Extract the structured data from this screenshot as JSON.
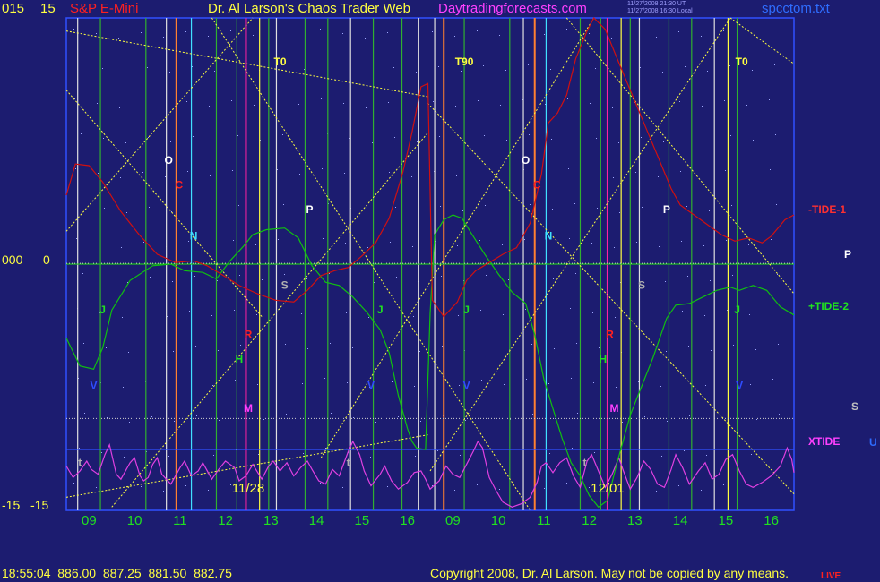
{
  "header": {
    "left_axis_top": "015",
    "left_axis_top2": "15",
    "title_market": "S&P E-Mini",
    "title_main": "Dr. Al Larson's Chaos Trader Web",
    "title_site": "Daytradingforecasts.com",
    "timestamp_ut": "11/27/2008 21:30 UT",
    "timestamp_local": "11/27/2008 16:30 Local",
    "filename": "spcctom.txt"
  },
  "axes": {
    "mid_left": "000",
    "mid_left2": "0",
    "bottom_left": "-15",
    "bottom_left2": "-15"
  },
  "legend": {
    "tide1": "-TIDE-1",
    "tide2": "+TIDE-2",
    "xtide": "XTIDE",
    "p": "P",
    "s": "S",
    "u": "U"
  },
  "footer": {
    "quote": "18:55:04  886.00  887.25  881.50  882.75",
    "copyright": "Copyright 2008, Dr. Al Larson. May not be copied by any means.",
    "corner": "LIVE"
  },
  "colors": {
    "background": "#1c1c70",
    "tide1": "#d01010",
    "tide2": "#10c010",
    "xtide": "#e040e0",
    "yellow": "#ffff40",
    "green_line": "#30b030",
    "cyan_line": "#40e0ff",
    "orange_line": "#ff8030",
    "magenta_line": "#ff20a0",
    "white_line": "#e0e0e0"
  },
  "chart_data": {
    "type": "line",
    "title": "S&P E-Mini",
    "y_range": [
      -15,
      15
    ],
    "x_ticks": [
      {
        "label": "09",
        "x": 0.5
      },
      {
        "label": "10",
        "x": 1.5
      },
      {
        "label": "11",
        "x": 2.5
      },
      {
        "label": "12",
        "x": 3.5
      },
      {
        "label": "13",
        "x": 4.5
      },
      {
        "label": "14",
        "x": 5.5
      },
      {
        "label": "15",
        "x": 6.5
      },
      {
        "label": "16",
        "x": 7.5
      },
      {
        "label": "09",
        "x": 8.5
      },
      {
        "label": "10",
        "x": 9.5
      },
      {
        "label": "11",
        "x": 10.5
      },
      {
        "label": "12",
        "x": 11.5
      },
      {
        "label": "13",
        "x": 12.5
      },
      {
        "label": "14",
        "x": 13.5
      },
      {
        "label": "15",
        "x": 14.5
      },
      {
        "label": "16",
        "x": 15.5
      }
    ],
    "date_labels": [
      {
        "label": "11/28",
        "x": 4.0,
        "y": -13.9
      },
      {
        "label": "12/01",
        "x": 11.9,
        "y": -13.9
      }
    ],
    "vlines": [
      {
        "x": 0.25,
        "color": "white"
      },
      {
        "x": 0.75,
        "color": "green"
      },
      {
        "x": 1.75,
        "color": "green"
      },
      {
        "x": 2.2,
        "color": "white"
      },
      {
        "x": 2.42,
        "color": "orange"
      },
      {
        "x": 2.75,
        "color": "cyan"
      },
      {
        "x": 3.3,
        "color": "green"
      },
      {
        "x": 3.75,
        "color": "green"
      },
      {
        "x": 3.95,
        "color": "magenta"
      },
      {
        "x": 4.25,
        "color": "yellow"
      },
      {
        "x": 4.45,
        "color": "green"
      },
      {
        "x": 4.62,
        "color": "white"
      },
      {
        "x": 5.25,
        "color": "green"
      },
      {
        "x": 5.75,
        "color": "green"
      },
      {
        "x": 6.25,
        "color": "white"
      },
      {
        "x": 6.75,
        "color": "green"
      },
      {
        "x": 7.38,
        "color": "green"
      },
      {
        "x": 7.75,
        "color": "white"
      },
      {
        "x": 8.1,
        "color": "white"
      },
      {
        "x": 8.3,
        "color": "orange"
      },
      {
        "x": 8.75,
        "color": "green"
      },
      {
        "x": 9.75,
        "color": "green"
      },
      {
        "x": 10.05,
        "color": "white"
      },
      {
        "x": 10.3,
        "color": "orange"
      },
      {
        "x": 10.55,
        "color": "cyan"
      },
      {
        "x": 11.3,
        "color": "green"
      },
      {
        "x": 11.75,
        "color": "green"
      },
      {
        "x": 11.9,
        "color": "magenta"
      },
      {
        "x": 12.2,
        "color": "yellow"
      },
      {
        "x": 12.4,
        "color": "green"
      },
      {
        "x": 12.6,
        "color": "white"
      },
      {
        "x": 13.25,
        "color": "green"
      },
      {
        "x": 13.75,
        "color": "green"
      },
      {
        "x": 14.25,
        "color": "white"
      },
      {
        "x": 14.55,
        "color": "yellow"
      },
      {
        "x": 14.75,
        "color": "green"
      }
    ],
    "tide1": [
      [
        0,
        4.2
      ],
      [
        0.2,
        6.1
      ],
      [
        0.5,
        6.0
      ],
      [
        0.8,
        5.0
      ],
      [
        1.2,
        3.2
      ],
      [
        1.6,
        1.8
      ],
      [
        2.0,
        0.6
      ],
      [
        2.4,
        0.1
      ],
      [
        2.8,
        0.2
      ],
      [
        3.1,
        -0.1
      ],
      [
        3.4,
        -0.6
      ],
      [
        3.8,
        -1.3
      ],
      [
        4.2,
        -1.8
      ],
      [
        4.6,
        -2.2
      ],
      [
        5.0,
        -2.3
      ],
      [
        5.3,
        -1.6
      ],
      [
        5.6,
        -0.7
      ],
      [
        5.9,
        -0.4
      ],
      [
        6.2,
        -0.2
      ],
      [
        6.5,
        0.5
      ],
      [
        6.8,
        1.3
      ],
      [
        7.1,
        2.8
      ],
      [
        7.4,
        5.6
      ],
      [
        7.6,
        8.0
      ],
      [
        7.8,
        10.8
      ],
      [
        7.95,
        11.0
      ],
      [
        8.05,
        -2.2
      ],
      [
        8.3,
        -3.2
      ],
      [
        8.6,
        -2.3
      ],
      [
        8.8,
        -1.0
      ],
      [
        9.0,
        -0.4
      ],
      [
        9.3,
        0.1
      ],
      [
        9.6,
        0.6
      ],
      [
        9.9,
        1.0
      ],
      [
        10.2,
        2.5
      ],
      [
        10.45,
        5.5
      ],
      [
        10.6,
        8.6
      ],
      [
        10.8,
        9.2
      ],
      [
        11.0,
        10.3
      ],
      [
        11.2,
        12.5
      ],
      [
        11.45,
        14.2
      ],
      [
        11.6,
        15.0
      ],
      [
        11.85,
        14.3
      ],
      [
        12.1,
        12.6
      ],
      [
        12.4,
        10.6
      ],
      [
        12.7,
        8.6
      ],
      [
        13.0,
        6.6
      ],
      [
        13.3,
        4.6
      ],
      [
        13.5,
        3.6
      ],
      [
        13.8,
        3.0
      ],
      [
        14.1,
        2.4
      ],
      [
        14.4,
        1.8
      ],
      [
        14.7,
        1.4
      ],
      [
        15.0,
        1.6
      ],
      [
        15.3,
        1.3
      ],
      [
        15.5,
        1.7
      ],
      [
        15.8,
        2.7
      ],
      [
        16.0,
        3.0
      ]
    ],
    "tide2": [
      [
        0,
        -4.5
      ],
      [
        0.3,
        -6.2
      ],
      [
        0.6,
        -6.4
      ],
      [
        0.8,
        -5.1
      ],
      [
        1.0,
        -2.8
      ],
      [
        1.4,
        -1.0
      ],
      [
        1.9,
        -0.1
      ],
      [
        2.3,
        0.0
      ],
      [
        2.6,
        -0.4
      ],
      [
        3.0,
        -0.5
      ],
      [
        3.3,
        -0.9
      ],
      [
        3.6,
        0.2
      ],
      [
        3.9,
        1.1
      ],
      [
        4.1,
        1.8
      ],
      [
        4.4,
        2.1
      ],
      [
        4.8,
        2.2
      ],
      [
        5.1,
        1.6
      ],
      [
        5.4,
        -0.1
      ],
      [
        5.7,
        -1.1
      ],
      [
        6.0,
        -1.3
      ],
      [
        6.3,
        -2.0
      ],
      [
        6.6,
        -2.9
      ],
      [
        6.9,
        -4.0
      ],
      [
        7.1,
        -5.4
      ],
      [
        7.3,
        -8.0
      ],
      [
        7.5,
        -10.0
      ],
      [
        7.6,
        -10.8
      ],
      [
        7.7,
        -11.2
      ],
      [
        7.9,
        -11.3
      ],
      [
        8.0,
        -3.0
      ],
      [
        8.1,
        1.8
      ],
      [
        8.3,
        2.7
      ],
      [
        8.5,
        3.0
      ],
      [
        8.7,
        2.8
      ],
      [
        8.9,
        1.9
      ],
      [
        9.2,
        0.6
      ],
      [
        9.5,
        -0.6
      ],
      [
        9.8,
        -1.7
      ],
      [
        10.1,
        -2.4
      ],
      [
        10.3,
        -4.3
      ],
      [
        10.5,
        -7.0
      ],
      [
        10.7,
        -8.8
      ],
      [
        10.9,
        -10.6
      ],
      [
        11.1,
        -12.1
      ],
      [
        11.3,
        -12.9
      ],
      [
        11.5,
        -14.1
      ],
      [
        11.7,
        -14.8
      ],
      [
        11.9,
        -14.4
      ],
      [
        12.1,
        -12.2
      ],
      [
        12.4,
        -9.2
      ],
      [
        12.6,
        -7.8
      ],
      [
        12.9,
        -5.7
      ],
      [
        13.2,
        -3.3
      ],
      [
        13.4,
        -2.5
      ],
      [
        13.7,
        -2.4
      ],
      [
        14.0,
        -2.0
      ],
      [
        14.3,
        -1.6
      ],
      [
        14.6,
        -1.4
      ],
      [
        14.8,
        -1.6
      ],
      [
        15.1,
        -1.3
      ],
      [
        15.4,
        -1.6
      ],
      [
        15.7,
        -2.6
      ],
      [
        16.0,
        -3.1
      ]
    ],
    "xtide": [
      [
        0,
        -12.3
      ],
      [
        0.15,
        -13.0
      ],
      [
        0.3,
        -12.6
      ],
      [
        0.45,
        -12.0
      ],
      [
        0.55,
        -12.5
      ],
      [
        0.7,
        -12.8
      ],
      [
        0.85,
        -11.6
      ],
      [
        0.95,
        -11.0
      ],
      [
        1.1,
        -12.8
      ],
      [
        1.2,
        -13.1
      ],
      [
        1.4,
        -12.1
      ],
      [
        1.5,
        -11.8
      ],
      [
        1.62,
        -12.9
      ],
      [
        1.7,
        -13.2
      ],
      [
        1.8,
        -13.0
      ],
      [
        1.9,
        -12.2
      ],
      [
        2.0,
        -11.8
      ],
      [
        2.1,
        -12.8
      ],
      [
        2.3,
        -13.4
      ],
      [
        2.5,
        -12.4
      ],
      [
        2.6,
        -12.0
      ],
      [
        2.75,
        -12.9
      ],
      [
        2.9,
        -12.6
      ],
      [
        3.0,
        -12.1
      ],
      [
        3.2,
        -13.1
      ],
      [
        3.35,
        -12.5
      ],
      [
        3.5,
        -12.0
      ],
      [
        3.7,
        -12.4
      ],
      [
        3.8,
        -13.2
      ],
      [
        3.95,
        -12.9
      ],
      [
        4.1,
        -12.2
      ],
      [
        4.3,
        -13.1
      ],
      [
        4.45,
        -12.3
      ],
      [
        4.55,
        -12.0
      ],
      [
        4.7,
        -12.6
      ],
      [
        4.85,
        -12.1
      ],
      [
        5.0,
        -12.9
      ],
      [
        5.15,
        -12.4
      ],
      [
        5.3,
        -12.0
      ],
      [
        5.4,
        -12.5
      ],
      [
        5.55,
        -13.2
      ],
      [
        5.7,
        -13.4
      ],
      [
        5.85,
        -12.5
      ],
      [
        6.0,
        -12.9
      ],
      [
        6.2,
        -11.4
      ],
      [
        6.3,
        -10.8
      ],
      [
        6.45,
        -11.6
      ],
      [
        6.55,
        -12.6
      ],
      [
        6.7,
        -13.5
      ],
      [
        6.9,
        -12.8
      ],
      [
        7.0,
        -12.3
      ],
      [
        7.15,
        -13.2
      ],
      [
        7.3,
        -13.7
      ],
      [
        7.5,
        -13.3
      ],
      [
        7.65,
        -12.7
      ],
      [
        7.8,
        -12.6
      ],
      [
        7.9,
        -13.1
      ],
      [
        8.0,
        -13.7
      ],
      [
        8.2,
        -13.2
      ],
      [
        8.35,
        -12.3
      ],
      [
        8.5,
        -12.8
      ],
      [
        8.65,
        -13.0
      ],
      [
        8.8,
        -12.2
      ],
      [
        8.95,
        -11.4
      ],
      [
        9.05,
        -10.8
      ],
      [
        9.15,
        -11.2
      ],
      [
        9.3,
        -13.0
      ],
      [
        9.45,
        -13.8
      ],
      [
        9.6,
        -14.5
      ],
      [
        9.8,
        -14.8
      ],
      [
        10.0,
        -14.6
      ],
      [
        10.2,
        -14.2
      ],
      [
        10.35,
        -13.3
      ],
      [
        10.45,
        -12.3
      ],
      [
        10.55,
        -12.1
      ],
      [
        10.7,
        -12.7
      ],
      [
        10.85,
        -12.1
      ],
      [
        11.0,
        -11.8
      ],
      [
        11.15,
        -12.9
      ],
      [
        11.3,
        -13.6
      ],
      [
        11.45,
        -12.0
      ],
      [
        11.55,
        -11.6
      ],
      [
        11.7,
        -12.6
      ],
      [
        11.85,
        -13.6
      ],
      [
        12.0,
        -12.8
      ],
      [
        12.15,
        -11.8
      ],
      [
        12.25,
        -12.6
      ],
      [
        12.4,
        -13.7
      ],
      [
        12.55,
        -13.0
      ],
      [
        12.7,
        -12.0
      ],
      [
        12.85,
        -12.5
      ],
      [
        13.0,
        -13.4
      ],
      [
        13.15,
        -13.6
      ],
      [
        13.3,
        -12.5
      ],
      [
        13.4,
        -11.6
      ],
      [
        13.55,
        -12.4
      ],
      [
        13.7,
        -13.4
      ],
      [
        13.9,
        -12.6
      ],
      [
        14.05,
        -12.1
      ],
      [
        14.2,
        -13.1
      ],
      [
        14.35,
        -12.8
      ],
      [
        14.5,
        -11.9
      ],
      [
        14.65,
        -11.6
      ],
      [
        14.8,
        -12.6
      ],
      [
        14.95,
        -13.4
      ],
      [
        15.1,
        -13.6
      ],
      [
        15.3,
        -13.3
      ],
      [
        15.5,
        -12.9
      ],
      [
        15.7,
        -12.3
      ],
      [
        15.85,
        -11.2
      ],
      [
        15.95,
        -11.9
      ],
      [
        16.0,
        -12.7
      ]
    ],
    "yellow_diag": [
      [
        [
          0,
          14.2
        ],
        [
          7.95,
          10.2
        ]
      ],
      [
        [
          0,
          -14.2
        ],
        [
          7.95,
          -10.4
        ]
      ],
      [
        [
          0,
          2.0
        ],
        [
          4.1,
          15.0
        ]
      ],
      [
        [
          0,
          10.6
        ],
        [
          4.3,
          -3.2
        ]
      ],
      [
        [
          1.0,
          -14.8
        ],
        [
          7.95,
          8.0
        ]
      ],
      [
        [
          3.2,
          15.0
        ],
        [
          10.2,
          -15.0
        ]
      ],
      [
        [
          8.0,
          -12.6
        ],
        [
          14.6,
          15.0
        ]
      ],
      [
        [
          11.0,
          15.0
        ],
        [
          16.0,
          -1.8
        ]
      ],
      [
        [
          7.95,
          9.8
        ],
        [
          16.0,
          -14.0
        ]
      ],
      [
        [
          14.6,
          15.0
        ],
        [
          16.0,
          12.2
        ]
      ],
      [
        [
          5.6,
          -11.8
        ],
        [
          11.6,
          15.0
        ]
      ]
    ],
    "hlines": [
      {
        "y": 0,
        "style": "solid-green"
      },
      {
        "y": 0.05,
        "style": "dotted-white"
      },
      {
        "y": -9.4,
        "style": "dotted-white"
      },
      {
        "y": -11.3,
        "style": "solid-blue"
      }
    ],
    "annotations": [
      {
        "text": "T0",
        "x": 4.7,
        "y": 12.1,
        "color": "yellow"
      },
      {
        "text": "T90",
        "x": 8.75,
        "y": 12.1,
        "color": "yellow"
      },
      {
        "text": "T0",
        "x": 14.85,
        "y": 12.1,
        "color": "yellow"
      },
      {
        "text": "O",
        "x": 2.25,
        "y": 6.1,
        "color": "white"
      },
      {
        "text": "C",
        "x": 2.48,
        "y": 4.6,
        "color": "red"
      },
      {
        "text": "N",
        "x": 2.8,
        "y": 1.5,
        "color": "cyan"
      },
      {
        "text": "P",
        "x": 5.35,
        "y": 3.1,
        "color": "white"
      },
      {
        "text": "S",
        "x": 4.8,
        "y": -1.5,
        "color": "gray"
      },
      {
        "text": "J",
        "x": 0.8,
        "y": -3.0,
        "color": "green"
      },
      {
        "text": "J",
        "x": 6.9,
        "y": -3.0,
        "color": "green"
      },
      {
        "text": "J",
        "x": 8.8,
        "y": -3.0,
        "color": "green"
      },
      {
        "text": "J",
        "x": 14.75,
        "y": -3.0,
        "color": "green"
      },
      {
        "text": "R",
        "x": 4.0,
        "y": -4.5,
        "color": "red"
      },
      {
        "text": "H",
        "x": 3.8,
        "y": -6.0,
        "color": "green"
      },
      {
        "text": "M",
        "x": 4.0,
        "y": -9.0,
        "color": "magenta"
      },
      {
        "text": "V",
        "x": 0.6,
        "y": -7.6,
        "color": "blue"
      },
      {
        "text": "V",
        "x": 6.7,
        "y": -7.6,
        "color": "blue"
      },
      {
        "text": "V",
        "x": 8.8,
        "y": -7.6,
        "color": "blue"
      },
      {
        "text": "V",
        "x": 14.8,
        "y": -7.6,
        "color": "blue"
      },
      {
        "text": "t",
        "x": 0.3,
        "y": -12.3,
        "color": "gray"
      },
      {
        "text": "t",
        "x": 6.2,
        "y": -12.3,
        "color": "gray"
      },
      {
        "text": "t",
        "x": 11.4,
        "y": -12.3,
        "color": "gray"
      },
      {
        "text": "O",
        "x": 10.1,
        "y": 6.1,
        "color": "white"
      },
      {
        "text": "C",
        "x": 10.35,
        "y": 4.6,
        "color": "red"
      },
      {
        "text": "N",
        "x": 10.6,
        "y": 1.5,
        "color": "cyan"
      },
      {
        "text": "P",
        "x": 13.2,
        "y": 3.1,
        "color": "white"
      },
      {
        "text": "S",
        "x": 12.65,
        "y": -1.5,
        "color": "gray"
      },
      {
        "text": "R",
        "x": 11.95,
        "y": -4.5,
        "color": "red"
      },
      {
        "text": "H",
        "x": 11.8,
        "y": -6.0,
        "color": "green"
      },
      {
        "text": "M",
        "x": 12.05,
        "y": -9.0,
        "color": "magenta"
      }
    ]
  }
}
